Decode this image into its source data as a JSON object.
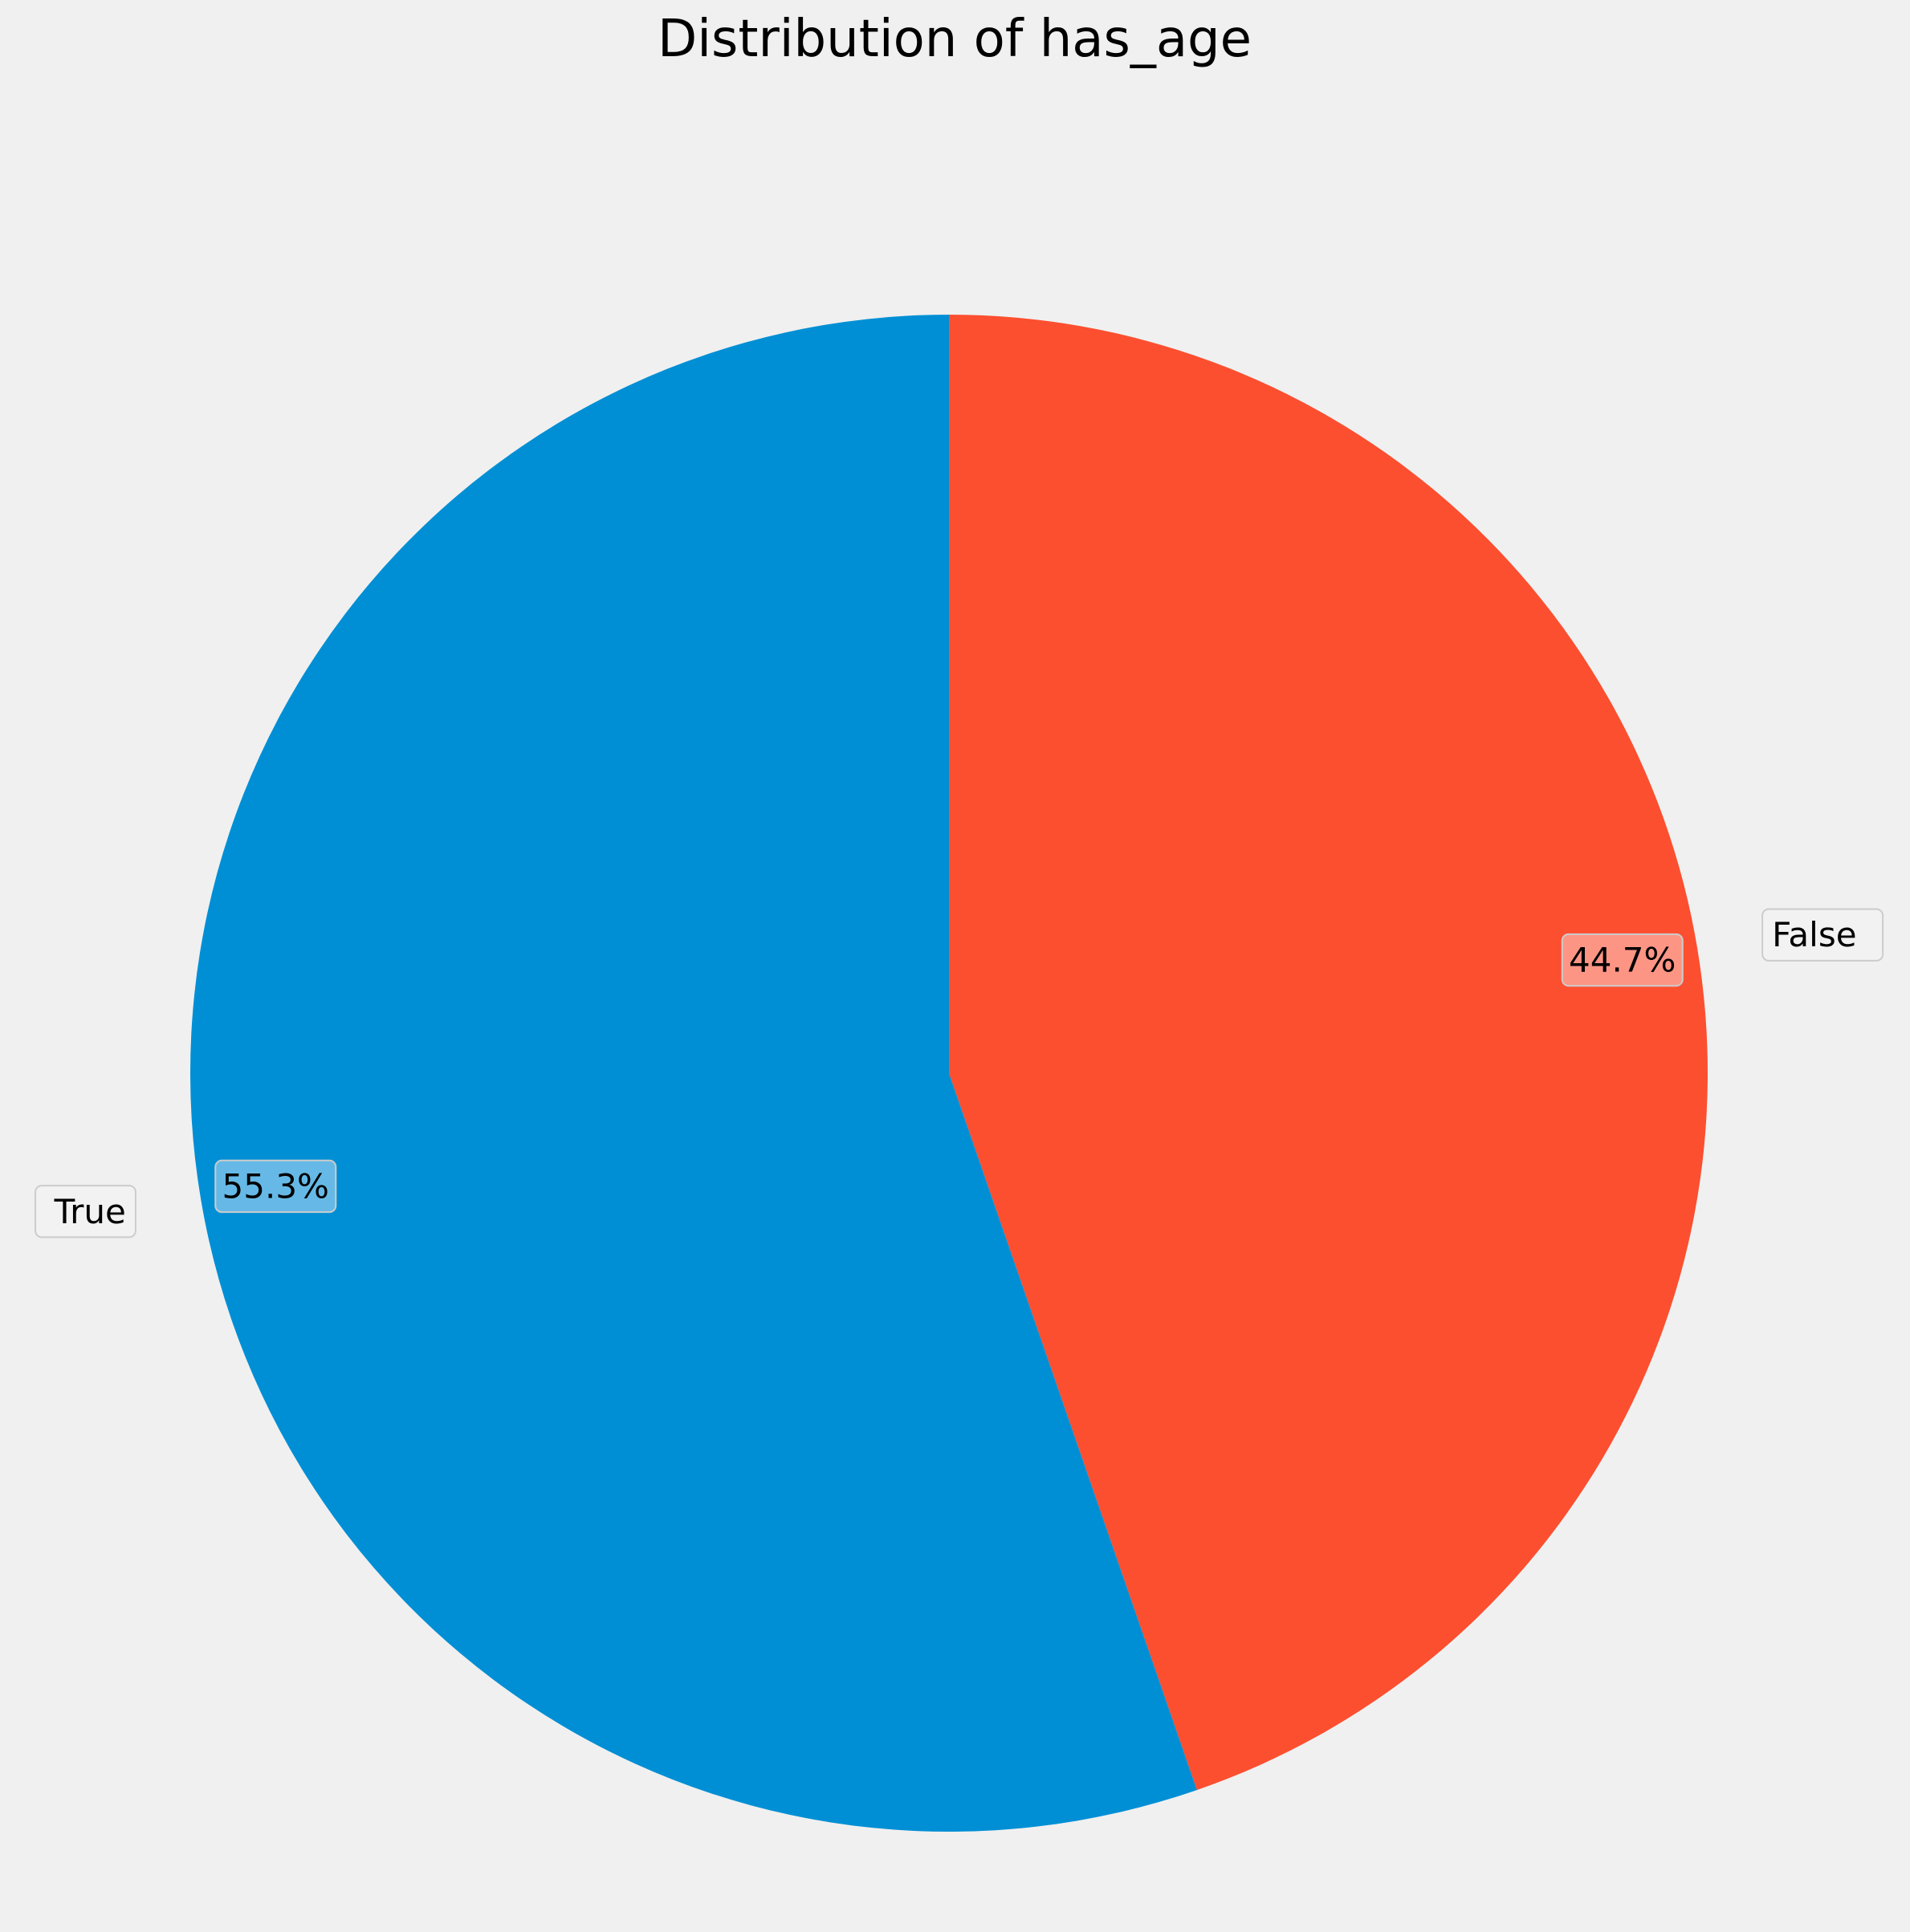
{
  "chart_data": {
    "type": "pie",
    "title": "Distribution of has_age",
    "start_angle_deg": 90,
    "direction": "counterclockwise",
    "slices": [
      {
        "label": "True",
        "value": 55.3,
        "pct_label": "55.3%",
        "color": "#008fd5",
        "pct_box_color": "#66b9e6"
      },
      {
        "label": "False",
        "value": 44.7,
        "pct_label": "44.7%",
        "color": "#fc4f30",
        "pct_box_color": "#fd9585"
      }
    ],
    "background": "#f0f0f0",
    "label_box_color": "#f2f2f2",
    "label_box_border": "#cccccc"
  }
}
